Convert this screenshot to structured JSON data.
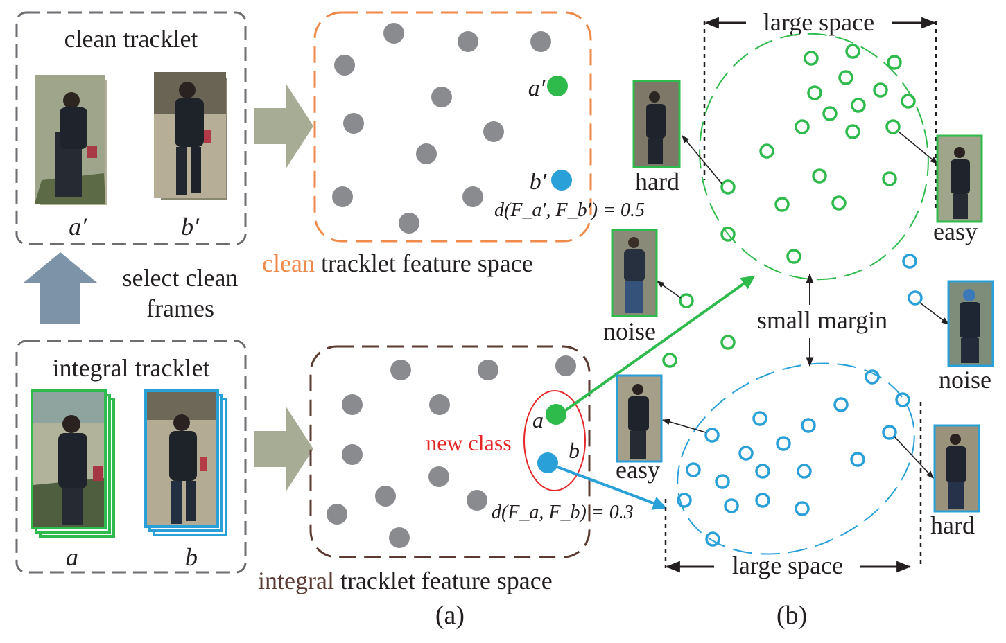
{
  "boxes": {
    "clean_tracklet_title": "clean tracklet",
    "integral_tracklet_title": "integral tracklet",
    "clean_frame_labels": [
      "a′",
      "b′"
    ],
    "integral_frame_labels": [
      "a",
      "b"
    ],
    "select_arrow_label_line1": "select clean",
    "select_arrow_label_line2": "frames"
  },
  "feature_spaces": {
    "clean_caption_word": "clean",
    "clean_caption_rest": " tracklet feature space",
    "integral_caption_word": "integral",
    "integral_caption_rest": " tracklet feature space",
    "clean_point_a": "a′",
    "clean_point_b": "b′",
    "clean_distance": "d(F_a′, F_b′) = 0.5",
    "integral_point_a": "a",
    "integral_point_b": "b",
    "integral_distance": "d(F_a, F_b) = 0.3",
    "new_class_label": "new class"
  },
  "panel_b": {
    "top_span_label": "large space",
    "bottom_span_label": "large space",
    "margin_label": "small margin",
    "thumb_labels": {
      "hard_green": "hard",
      "easy_green": "easy",
      "noise_green": "noise",
      "noise_blue": "noise",
      "easy_blue": "easy",
      "hard_blue": "hard"
    }
  },
  "subfigure_labels": [
    "(a)",
    "(b)"
  ],
  "colors": {
    "clean_accent": "#f08a4b",
    "integral_accent": "#5b3b32",
    "green": "#2ebb4c",
    "blue": "#2aa0d8",
    "gray_point": "#8a8b8f",
    "box_border": "#6d6e71",
    "block_arrow": "#a7ad95",
    "select_arrow": "#7c93a8",
    "new_class_red": "#e42727"
  }
}
